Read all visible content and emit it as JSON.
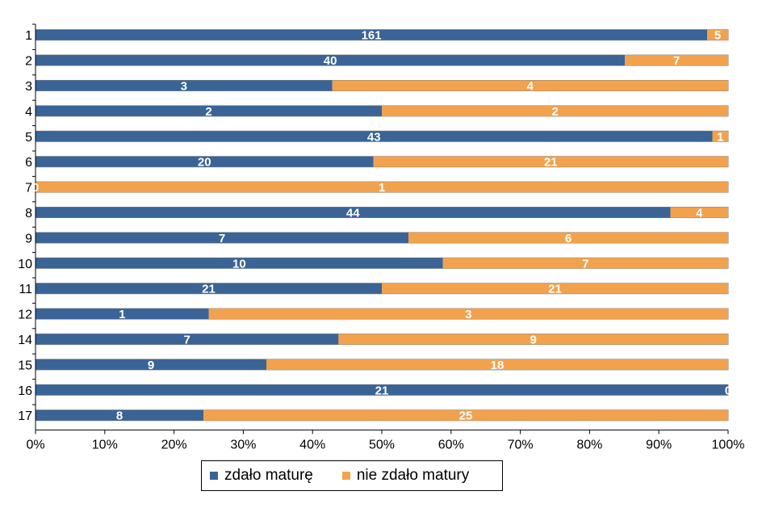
{
  "chart_data": {
    "type": "bar",
    "orientation": "horizontal",
    "stacked": "percent",
    "categories": [
      "1",
      "2",
      "3",
      "4",
      "5",
      "6",
      "7",
      "8",
      "9",
      "10",
      "11",
      "12",
      "14",
      "15",
      "16",
      "17"
    ],
    "series": [
      {
        "name": "zdało maturę",
        "color": "#3a6496",
        "values": [
          161,
          40,
          3,
          2,
          43,
          20,
          0,
          44,
          7,
          10,
          21,
          1,
          7,
          9,
          21,
          8
        ]
      },
      {
        "name": "nie zdało matury",
        "color": "#f2a24d",
        "values": [
          5,
          7,
          4,
          2,
          1,
          21,
          1,
          4,
          6,
          7,
          21,
          3,
          9,
          18,
          0,
          25
        ]
      }
    ],
    "x_ticks": [
      "0%",
      "10%",
      "20%",
      "30%",
      "40%",
      "50%",
      "60%",
      "70%",
      "80%",
      "90%",
      "100%"
    ],
    "xlim": [
      0,
      100
    ],
    "grid": false,
    "legend_position": "bottom"
  }
}
